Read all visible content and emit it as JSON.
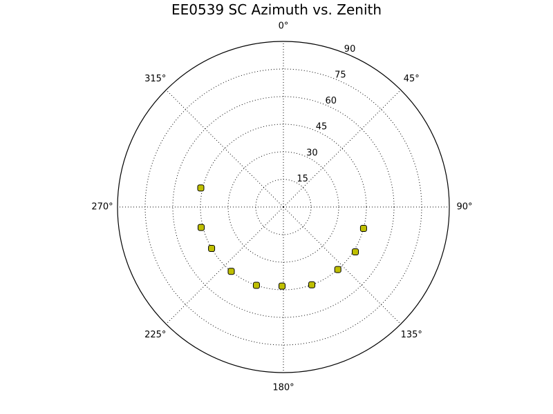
{
  "chart_data": {
    "type": "scatter",
    "subtype": "polar",
    "title": "EE0539 SC Azimuth vs. Zenith",
    "theta_direction": "clockwise",
    "theta_zero": "top",
    "angle_ticks": [
      0,
      45,
      90,
      135,
      180,
      225,
      270,
      315
    ],
    "angle_tick_labels": [
      "0°",
      "45°",
      "90°",
      "135°",
      "180°",
      "225°",
      "270°",
      "315°"
    ],
    "radial_ticks": [
      15,
      30,
      45,
      60,
      75,
      90
    ],
    "radial_tick_labels": [
      "15",
      "30",
      "45",
      "60",
      "75",
      "90"
    ],
    "rlim": [
      0,
      90
    ],
    "grid": true,
    "marker_color": "#bfbf00",
    "marker_edge_color": "#000000",
    "series": [
      {
        "points": [
          {
            "azimuth": 105,
            "zenith": 45
          },
          {
            "azimuth": 122,
            "zenith": 46
          },
          {
            "azimuth": 139,
            "zenith": 45
          },
          {
            "azimuth": 160,
            "zenith": 45
          },
          {
            "azimuth": 181,
            "zenith": 43
          },
          {
            "azimuth": 199,
            "zenith": 45
          },
          {
            "azimuth": 219,
            "zenith": 45
          },
          {
            "azimuth": 240,
            "zenith": 45
          },
          {
            "azimuth": 256,
            "zenith": 46
          },
          {
            "azimuth": 283,
            "zenith": 46
          }
        ]
      }
    ]
  }
}
